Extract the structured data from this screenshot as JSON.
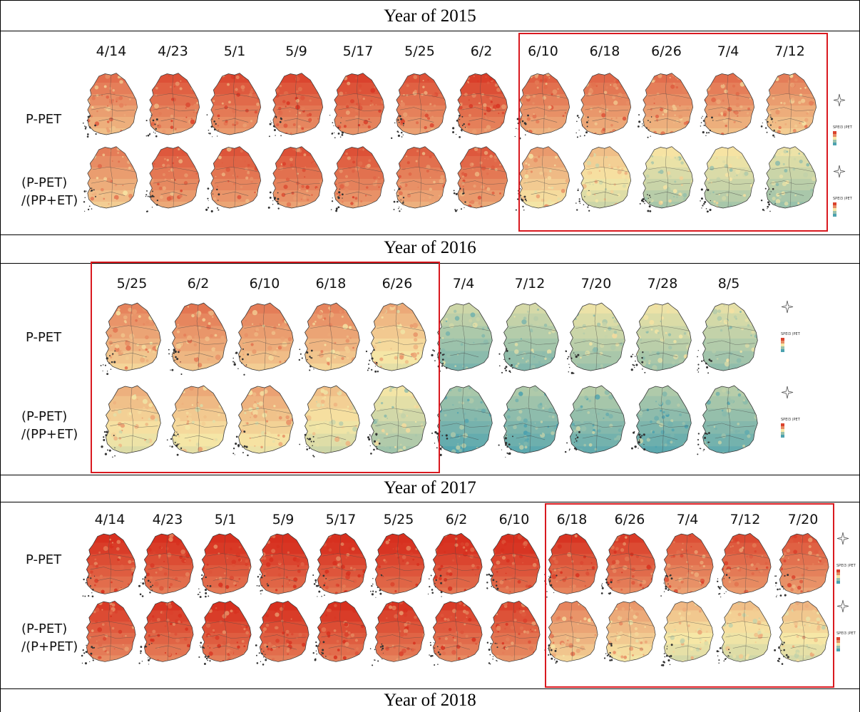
{
  "sections": [
    {
      "title": "Year of 2015",
      "dates": [
        "4/14",
        "4/23",
        "5/1",
        "5/9",
        "5/17",
        "5/25",
        "6/2",
        "6/10",
        "6/18",
        "6/26",
        "7/4",
        "7/12"
      ],
      "rows": [
        {
          "label": "P-PET",
          "dryness": [
            0.72,
            0.8,
            0.82,
            0.83,
            0.84,
            0.8,
            0.85,
            0.76,
            0.74,
            0.72,
            0.72,
            0.68
          ]
        },
        {
          "label": "(P-PET)\n/(PP+ET)",
          "dryness": [
            0.68,
            0.78,
            0.79,
            0.8,
            0.8,
            0.76,
            0.78,
            0.6,
            0.5,
            0.4,
            0.4,
            0.36
          ]
        }
      ],
      "highlight_dates": [
        "6/10",
        "6/18",
        "6/26",
        "7/4",
        "7/12"
      ],
      "legend_title": "SPEI3 (PET)"
    },
    {
      "title": "Year of 2016",
      "dates": [
        "5/25",
        "6/2",
        "6/10",
        "6/18",
        "6/26",
        "7/4",
        "7/12",
        "7/20",
        "7/28",
        "8/5"
      ],
      "rows": [
        {
          "label": "P-PET",
          "dryness": [
            0.66,
            0.7,
            0.68,
            0.66,
            0.56,
            0.28,
            0.3,
            0.36,
            0.36,
            0.34
          ]
        },
        {
          "label": "(P-PET)\n/(PP+ET)",
          "dryness": [
            0.54,
            0.56,
            0.58,
            0.5,
            0.38,
            0.18,
            0.2,
            0.22,
            0.2,
            0.22
          ]
        }
      ],
      "highlight_dates": [
        "5/25",
        "6/2",
        "6/10",
        "6/18",
        "6/26"
      ],
      "legend_title": "SPEI3 (PET)"
    },
    {
      "title": "Year of 2017",
      "dates": [
        "4/14",
        "4/23",
        "5/1",
        "5/9",
        "5/17",
        "5/25",
        "6/2",
        "6/10",
        "6/18",
        "6/26",
        "7/4",
        "7/12",
        "7/20"
      ],
      "rows": [
        {
          "label": "P-PET",
          "dryness": [
            0.9,
            0.9,
            0.91,
            0.92,
            0.92,
            0.92,
            0.92,
            0.92,
            0.88,
            0.86,
            0.8,
            0.82,
            0.8
          ]
        },
        {
          "label": "(P-PET)\n/(P+PET)",
          "dryness": [
            0.86,
            0.88,
            0.9,
            0.9,
            0.9,
            0.88,
            0.86,
            0.84,
            0.66,
            0.6,
            0.52,
            0.5,
            0.52
          ]
        }
      ],
      "highlight_dates": [
        "6/18",
        "6/26",
        "7/4",
        "7/12",
        "7/20"
      ],
      "legend_title": "SPEI3 (PET)"
    },
    {
      "title": "Year of 2018"
    }
  ],
  "colors": {
    "dry": "#d7301f",
    "neutral": "#f7e7a6",
    "wet": "#3a9ab0",
    "highlight_box": "#d9191f"
  },
  "icons": {
    "north_arrow": "compass-star-icon"
  }
}
